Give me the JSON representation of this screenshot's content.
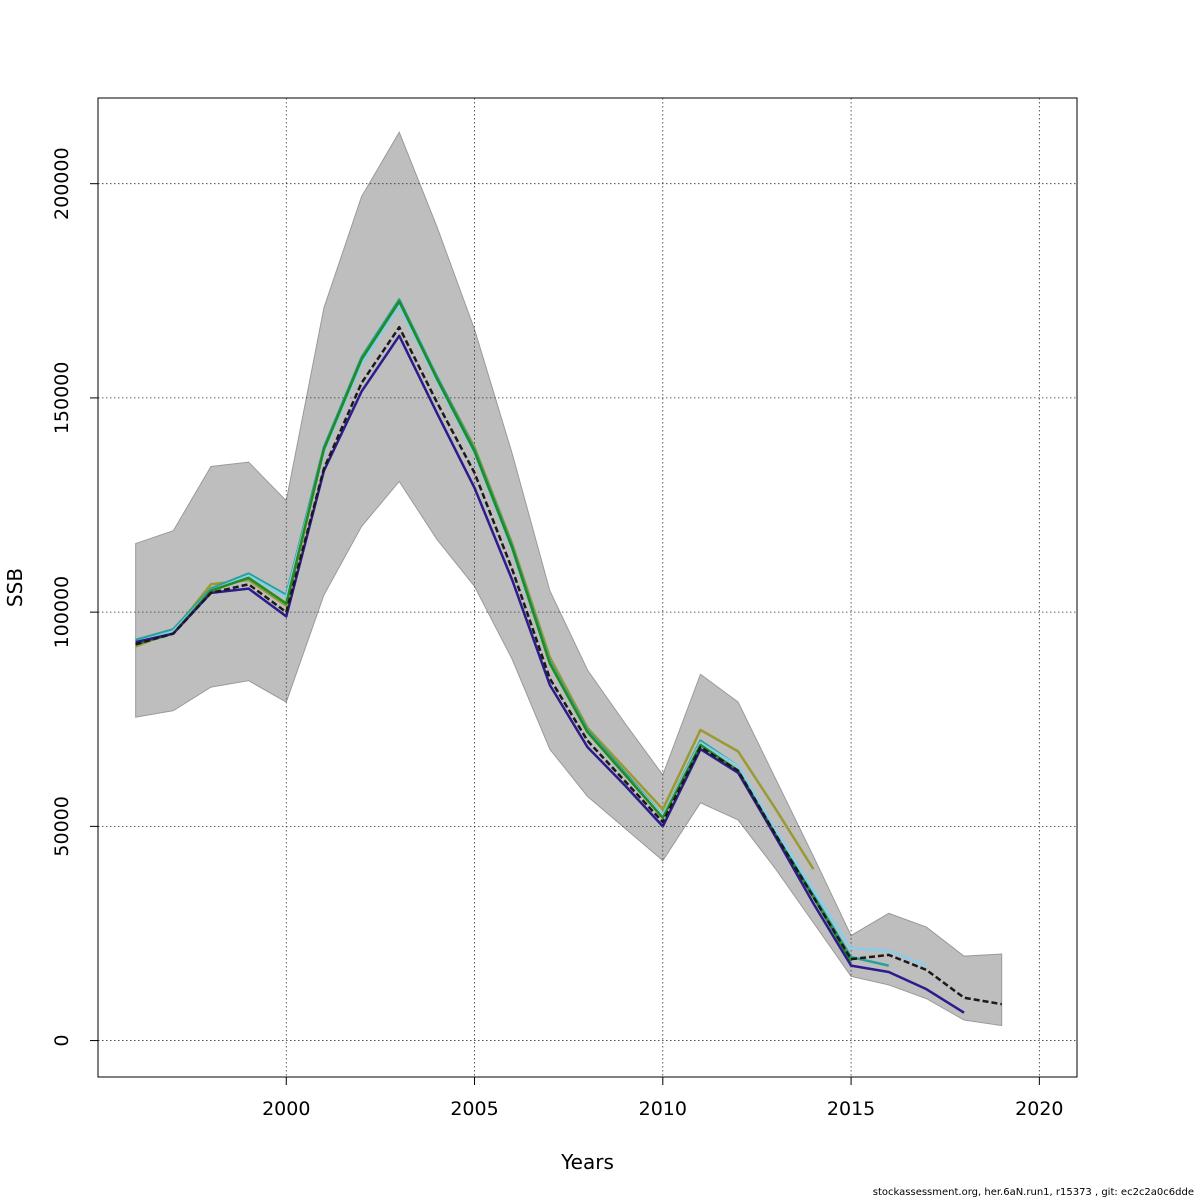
{
  "chart_data": {
    "type": "line",
    "title": "",
    "xlabel": "Years",
    "ylabel": "SSB",
    "xlim": [
      1995,
      2021
    ],
    "ylim": [
      -8500,
      220000
    ],
    "x_ticks": [
      2000,
      2005,
      2010,
      2015,
      2020
    ],
    "y_ticks": [
      0,
      50000,
      100000,
      150000,
      200000
    ],
    "grid": true,
    "confidence_band": {
      "color": "#bebebe",
      "x": [
        1996,
        1997,
        1998,
        1999,
        2000,
        2001,
        2002,
        2003,
        2004,
        2005,
        2006,
        2007,
        2008,
        2009,
        2010,
        2011,
        2012,
        2013,
        2014,
        2015,
        2016,
        2017,
        2018,
        2019
      ],
      "upper": [
        116000,
        119000,
        134000,
        135000,
        126000,
        171000,
        197000,
        212000,
        190000,
        166000,
        137000,
        105000,
        86500,
        74000,
        62000,
        85500,
        79000,
        61000,
        43000,
        24500,
        29700,
        26500,
        19700,
        20200
      ],
      "lower": [
        75500,
        77000,
        82500,
        84000,
        79000,
        104000,
        120000,
        130500,
        117000,
        106000,
        89000,
        68000,
        57000,
        49500,
        42000,
        55500,
        51500,
        40000,
        27500,
        15000,
        13000,
        9800,
        4800,
        3500
      ]
    },
    "series": [
      {
        "color": "#9a9a32",
        "x": [
          1996,
          1997,
          1998,
          1999,
          2000,
          2001,
          2002,
          2003,
          2004,
          2005,
          2006,
          2007,
          2008,
          2009,
          2010,
          2011,
          2012,
          2013,
          2014
        ],
        "values": [
          92000,
          95500,
          106500,
          107500,
          101500,
          138000,
          158500,
          172000,
          155000,
          138500,
          116000,
          89500,
          73000,
          63500,
          54000,
          72500,
          67500,
          54000,
          40000
        ]
      },
      {
        "color": "#2aa198",
        "x": [
          1996,
          1997,
          1998,
          1999,
          2000,
          2001,
          2002,
          2003,
          2004,
          2005,
          2006,
          2007,
          2008,
          2009,
          2010,
          2011,
          2012,
          2013,
          2014,
          2015,
          2016
        ],
        "values": [
          93500,
          96000,
          105500,
          109000,
          104000,
          138500,
          159500,
          173000,
          155000,
          138000,
          115500,
          88500,
          72500,
          62500,
          52500,
          70000,
          64000,
          48500,
          34000,
          19500,
          17500
        ]
      },
      {
        "color": "#87ceeb",
        "x": [
          1996,
          1997,
          1998,
          1999,
          2000,
          2001,
          2002,
          2003,
          2004,
          2005,
          2006,
          2007,
          2008,
          2009,
          2010,
          2011,
          2012,
          2013,
          2014,
          2015,
          2016,
          2017
        ],
        "values": [
          93000,
          95500,
          105000,
          108500,
          103500,
          137500,
          158000,
          171500,
          154000,
          137000,
          114500,
          88000,
          72000,
          62000,
          52500,
          69500,
          64000,
          49000,
          35000,
          21500,
          21000,
          17500
        ]
      },
      {
        "color": "#228b22",
        "x": [
          1996,
          1997,
          1998,
          1999,
          2000,
          2001,
          2002,
          2003,
          2004,
          2005,
          2006,
          2007,
          2008,
          2009,
          2010,
          2011,
          2012,
          2013,
          2014,
          2015
        ],
        "values": [
          92500,
          95000,
          105000,
          108000,
          102000,
          138000,
          159000,
          172500,
          154500,
          137500,
          115000,
          88000,
          72000,
          62000,
          52000,
          69000,
          63000,
          48000,
          33500,
          18500
        ]
      },
      {
        "color": "#2c1b8c",
        "x": [
          1996,
          1997,
          1998,
          1999,
          2000,
          2001,
          2002,
          2003,
          2004,
          2005,
          2006,
          2007,
          2008,
          2009,
          2010,
          2011,
          2012,
          2013,
          2014,
          2015,
          2016,
          2017,
          2018
        ],
        "values": [
          93000,
          95000,
          104500,
          105500,
          99000,
          133000,
          151500,
          164500,
          146500,
          129000,
          107500,
          83000,
          68500,
          59500,
          50000,
          68000,
          62500,
          47500,
          32000,
          17500,
          16000,
          12000,
          6500
        ]
      },
      {
        "color": "#1a1a1a",
        "dashed": true,
        "x": [
          1996,
          1997,
          1998,
          1999,
          2000,
          2001,
          2002,
          2003,
          2004,
          2005,
          2006,
          2007,
          2008,
          2009,
          2010,
          2011,
          2012,
          2013,
          2014,
          2015,
          2016,
          2017,
          2018,
          2019
        ],
        "values": [
          92500,
          95000,
          104500,
          106500,
          100000,
          133500,
          153500,
          166500,
          149000,
          132500,
          110000,
          84500,
          70000,
          60500,
          51000,
          68500,
          63000,
          48000,
          33500,
          19000,
          20000,
          16500,
          10000,
          8500
        ]
      }
    ]
  },
  "footer": "stockassessment.org, her.6aN.run1, r15373 , git: ec2c2a0c6dde"
}
